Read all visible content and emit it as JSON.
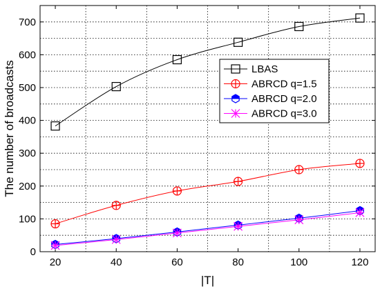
{
  "chart_data": {
    "type": "line",
    "title": "",
    "xlabel": "|T|",
    "ylabel": "The number of broadcasts",
    "x": [
      20,
      40,
      60,
      80,
      100,
      120
    ],
    "xlim": [
      15,
      125
    ],
    "ylim": [
      0,
      750
    ],
    "xticks": [
      20,
      40,
      60,
      80,
      100,
      120
    ],
    "yticks": [
      0,
      100,
      200,
      300,
      400,
      500,
      600,
      700
    ],
    "grid": true,
    "legend_position": "center-right",
    "series": [
      {
        "name": "LBAS",
        "values": [
          383,
          503,
          585,
          638,
          686,
          712
        ],
        "color": "#000000",
        "marker": "square"
      },
      {
        "name": "ABRCD q=1.5",
        "values": [
          85,
          141,
          185,
          214,
          250,
          269
        ],
        "color": "#ff0000",
        "marker": "circle-plus"
      },
      {
        "name": "ABRCD q=2.0",
        "values": [
          22,
          40,
          60,
          81,
          102,
          125
        ],
        "color": "#0000ff",
        "marker": "hexagon"
      },
      {
        "name": "ABRCD q=3.0",
        "values": [
          19,
          37,
          57,
          77,
          97,
          119
        ],
        "color": "#ff00ff",
        "marker": "star"
      }
    ]
  }
}
